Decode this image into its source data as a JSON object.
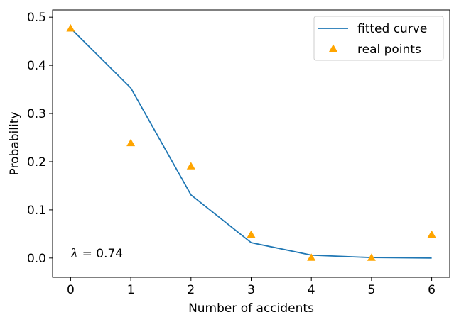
{
  "chart_data": {
    "type": "line",
    "title": "",
    "xlabel": "Number of accidents",
    "ylabel": "Probability",
    "xlim": [
      -0.3,
      6.3
    ],
    "ylim": [
      -0.04,
      0.515
    ],
    "xticks": [
      0,
      1,
      2,
      3,
      4,
      5,
      6
    ],
    "yticks": [
      0.0,
      0.1,
      0.2,
      0.3,
      0.4,
      0.5
    ],
    "xtick_labels": [
      "0",
      "1",
      "2",
      "3",
      "4",
      "5",
      "6"
    ],
    "ytick_labels": [
      "0.0",
      "0.1",
      "0.2",
      "0.3",
      "0.4",
      "0.5"
    ],
    "grid": false,
    "legend_position": "top-right",
    "series": [
      {
        "name": "fitted curve",
        "kind": "line",
        "color": "#1f77b4",
        "x": [
          0,
          1,
          2,
          3,
          4,
          5,
          6
        ],
        "y": [
          0.477,
          0.353,
          0.131,
          0.032,
          0.006,
          0.001,
          0.0
        ]
      },
      {
        "name": "real points",
        "kind": "scatter",
        "marker": "triangle-up",
        "color": "#ffa500",
        "x": [
          0,
          1,
          2,
          3,
          4,
          5,
          6
        ],
        "y": [
          0.476,
          0.238,
          0.19,
          0.048,
          0.0,
          0.0,
          0.048
        ]
      }
    ],
    "annotation": {
      "symbol": "λ",
      "equals": " = ",
      "value": "0.74",
      "x": 0,
      "y": 0.0
    }
  }
}
